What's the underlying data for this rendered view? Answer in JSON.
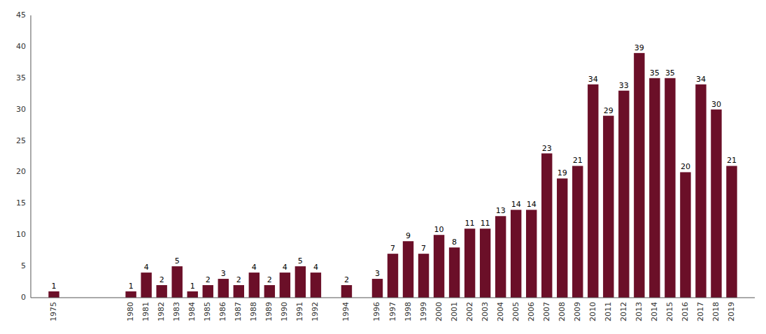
{
  "chart_data": {
    "type": "bar",
    "x": [
      1975,
      1980,
      1981,
      1982,
      1983,
      1984,
      1985,
      1986,
      1987,
      1988,
      1989,
      1990,
      1991,
      1992,
      1994,
      1996,
      1997,
      1998,
      1999,
      2000,
      2001,
      2002,
      2003,
      2004,
      2005,
      2006,
      2007,
      2008,
      2009,
      2010,
      2011,
      2012,
      2013,
      2014,
      2015,
      2016,
      2017,
      2018,
      2019
    ],
    "values": [
      1,
      1,
      4,
      2,
      5,
      1,
      2,
      3,
      2,
      4,
      2,
      4,
      5,
      4,
      2,
      3,
      7,
      9,
      7,
      10,
      8,
      11,
      11,
      13,
      14,
      14,
      23,
      19,
      21,
      34,
      29,
      33,
      39,
      35,
      35,
      20,
      34,
      30,
      21
    ],
    "color": "#6b0f28",
    "xlim": [
      1973.5,
      2020.5
    ],
    "xticks": [
      1975,
      1980,
      1981,
      1982,
      1983,
      1984,
      1985,
      1986,
      1987,
      1988,
      1989,
      1990,
      1991,
      1992,
      1994,
      1996,
      1997,
      1998,
      1999,
      2000,
      2001,
      2002,
      2003,
      2004,
      2005,
      2006,
      2007,
      2008,
      2009,
      2010,
      2011,
      2012,
      2013,
      2014,
      2015,
      2016,
      2017,
      2018,
      2019
    ],
    "ylim": [
      0,
      45
    ],
    "yticks": [
      0,
      5,
      10,
      15,
      20,
      25,
      30,
      35,
      40,
      45
    ],
    "data_labels": true,
    "grid": false
  }
}
